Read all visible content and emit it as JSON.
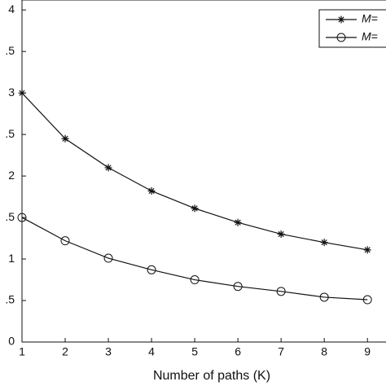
{
  "chart_data": {
    "type": "line",
    "x_label": "Number of  paths (K)",
    "x": [
      1,
      2,
      3,
      4,
      5,
      6,
      7,
      8,
      9
    ],
    "series": [
      {
        "name": "M=",
        "color": "#111111",
        "marker": "star",
        "values": [
          3.0,
          2.45,
          2.1,
          1.82,
          1.61,
          1.44,
          1.3,
          1.2,
          1.11
        ]
      },
      {
        "name": "M=",
        "color": "#111111",
        "marker": "circle",
        "values": [
          1.5,
          1.22,
          1.01,
          0.87,
          0.75,
          0.67,
          0.61,
          0.54,
          0.51
        ]
      }
    ],
    "xlim": [
      1,
      9.43
    ],
    "ylim": [
      0,
      4.12
    ],
    "xticks": [
      1,
      2,
      3,
      4,
      5,
      6,
      7,
      8,
      9
    ],
    "yticks": [
      0,
      {
        "value": 0.5,
        "label": ".5"
      },
      1,
      {
        "value": 1.5,
        "label": ".5"
      },
      2,
      {
        "value": 2.5,
        "label": ".5"
      },
      3,
      {
        "value": 3.5,
        "label": ".5"
      },
      4
    ],
    "legend": "upper right"
  }
}
